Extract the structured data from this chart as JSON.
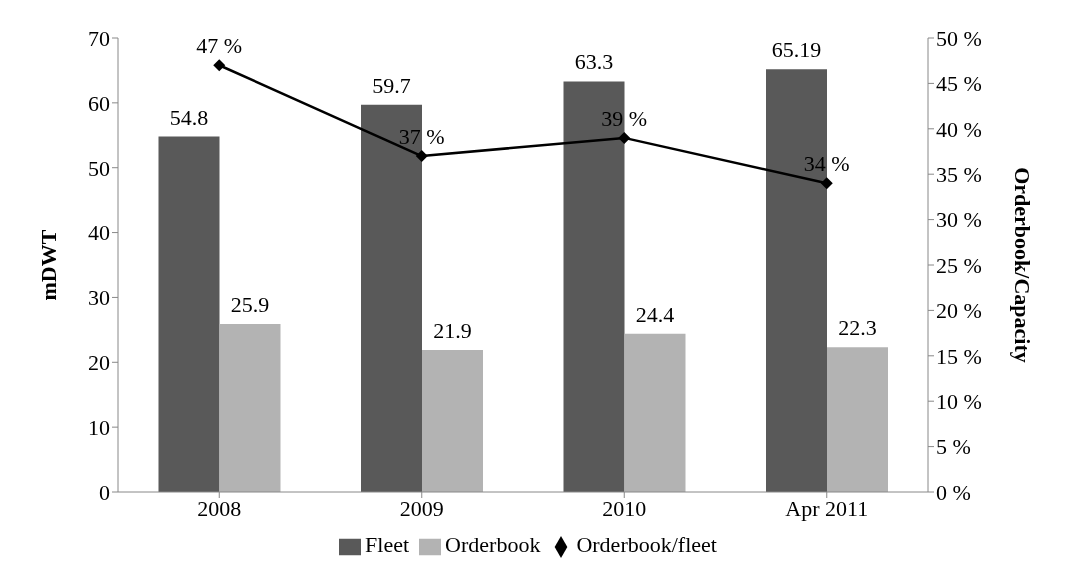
{
  "chart_data": {
    "type": "bar",
    "categories": [
      "2008",
      "2009",
      "2010",
      "Apr 2011"
    ],
    "series": [
      {
        "name": "Fleet",
        "color": "#595959",
        "values": [
          54.8,
          59.7,
          63.3,
          65.19
        ],
        "value_labels": [
          "54.8",
          "59.7",
          "63.3",
          "65.19"
        ]
      },
      {
        "name": "Orderbook",
        "color": "#b3b3b3",
        "values": [
          25.9,
          21.9,
          24.4,
          22.3
        ],
        "value_labels": [
          "25.9",
          "21.9",
          "24.4",
          "22.3"
        ]
      },
      {
        "name": "Orderbook/fleet",
        "type": "line",
        "axis": "y2",
        "color": "#000000",
        "marker": "diamond",
        "values": [
          47,
          37,
          39,
          34
        ],
        "value_labels": [
          "47 %",
          "37 %",
          "39 %",
          "34 %"
        ]
      }
    ],
    "ylabel": "mDWT",
    "y2label": "Orderbook/Capacity",
    "ylim": [
      0,
      70
    ],
    "yticks": [
      0,
      10,
      20,
      30,
      40,
      50,
      60,
      70
    ],
    "y2lim": [
      0,
      50
    ],
    "y2ticks": [
      {
        "value": 0,
        "label": "0 %"
      },
      {
        "value": 5,
        "label": "5 %"
      },
      {
        "value": 10,
        "label": "10 %"
      },
      {
        "value": 15,
        "label": "15 %"
      },
      {
        "value": 20,
        "label": "20 %"
      },
      {
        "value": 25,
        "label": "25 %"
      },
      {
        "value": 30,
        "label": "30 %"
      },
      {
        "value": 35,
        "label": "35 %"
      },
      {
        "value": 40,
        "label": "40 %"
      },
      {
        "value": 45,
        "label": "45 %"
      },
      {
        "value": 50,
        "label": "50 %"
      }
    ],
    "grid": false,
    "legend": "bottom"
  }
}
